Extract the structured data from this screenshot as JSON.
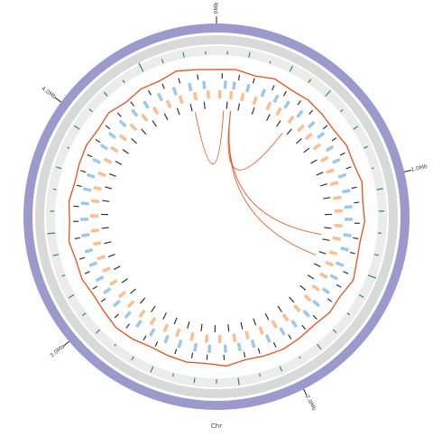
{
  "chart_data": {
    "type": "circos",
    "label": "Chr",
    "xlim": [
      0,
      4.7
    ],
    "xticks": [
      {
        "value": 0,
        "label": "0Mb"
      },
      {
        "value": 1,
        "label": "1.0Mb"
      },
      {
        "value": 2,
        "label": "2.0Mb"
      },
      {
        "value": 3,
        "label": "3.0Mb"
      },
      {
        "value": 4,
        "label": "4.0Mb"
      }
    ],
    "ideogram_color": "#9c99cc",
    "bins": [
      0,
      0.1,
      0.2,
      0.3,
      0.4,
      0.5,
      0.6,
      0.7,
      0.8,
      0.9,
      1,
      1.1,
      1.2,
      1.3,
      1.4,
      1.5,
      1.6,
      1.7,
      1.8,
      1.9,
      2,
      2.1,
      2.2,
      2.3,
      2.4,
      2.5,
      2.6,
      2.7,
      2.8,
      2.9,
      3,
      3.1,
      3.2,
      3.3,
      3.4,
      3.5,
      3.6,
      3.7,
      3.8,
      3.9,
      4,
      4.1,
      4.2,
      4.3,
      4.4,
      4.5,
      4.6,
      4.7
    ],
    "histogram": {
      "color": "#2e8b57",
      "ylim": [
        0,
        10
      ],
      "values": [
        3,
        5,
        2,
        6,
        4,
        7,
        3,
        5,
        4,
        2,
        6,
        5,
        3,
        4,
        8,
        5,
        3,
        4,
        6,
        2,
        5,
        3,
        7,
        4,
        5,
        3,
        6,
        4,
        2,
        5,
        4,
        6,
        3,
        5,
        7,
        4,
        3,
        5,
        2,
        6,
        4,
        5,
        3,
        9,
        4,
        5,
        3
      ]
    },
    "line": {
      "color": "#e8501c",
      "ylim": [
        0,
        10
      ],
      "values": [
        5,
        6,
        4,
        7,
        5,
        6,
        5,
        4,
        6,
        5,
        7,
        5,
        6,
        4,
        5,
        8,
        5,
        6,
        4,
        5,
        6,
        5,
        4,
        7,
        5,
        6,
        5,
        4,
        6,
        7,
        5,
        4,
        6,
        5,
        7,
        5,
        6,
        4,
        5,
        6,
        5,
        7,
        4,
        6,
        5,
        8,
        6
      ]
    },
    "gene_tracks": [
      {
        "color": "#333333",
        "positions": [
          0.03,
          0.12,
          0.2,
          0.31,
          0.38,
          0.47,
          0.55,
          0.66,
          0.74,
          0.83,
          0.91,
          1.02,
          1.1,
          1.21,
          1.29,
          1.37,
          1.48,
          1.56,
          1.65,
          1.77,
          1.85,
          1.94,
          2.03,
          2.12,
          2.2,
          2.31,
          2.4,
          2.48,
          2.57,
          2.68,
          2.75,
          2.86,
          2.94,
          3.05,
          3.13,
          3.22,
          3.3,
          3.41,
          3.5,
          3.58,
          3.69,
          3.77,
          3.86,
          3.95,
          4.04,
          4.13,
          4.22,
          4.33,
          4.41,
          4.5,
          4.6
        ]
      },
      {
        "color": "#9ecae1",
        "positions": [
          0.05,
          0.1,
          0.18,
          0.27,
          0.35,
          0.42,
          0.51,
          0.6,
          0.68,
          0.77,
          0.85,
          0.94,
          1.03,
          1.12,
          1.19,
          1.28,
          1.36,
          1.45,
          1.53,
          1.62,
          1.71,
          1.79,
          1.88,
          1.96,
          2.05,
          2.14,
          2.22,
          2.3,
          2.39,
          2.47,
          2.56,
          2.64,
          2.73,
          2.82,
          2.9,
          2.99,
          3.08,
          3.16,
          3.25,
          3.33,
          3.42,
          3.51,
          3.6,
          3.68,
          3.76,
          3.85,
          3.94,
          4.02,
          4.11,
          4.2,
          4.28,
          4.37,
          4.46,
          4.55,
          4.63
        ]
      },
      {
        "color": "#fdbe8f",
        "positions": [
          0.02,
          0.09,
          0.16,
          0.24,
          0.33,
          0.4,
          0.49,
          0.57,
          0.64,
          0.72,
          0.81,
          0.89,
          0.97,
          1.06,
          1.14,
          1.23,
          1.31,
          1.4,
          1.47,
          1.55,
          1.64,
          1.72,
          1.81,
          1.9,
          1.98,
          2.07,
          2.16,
          2.24,
          2.33,
          2.41,
          2.5,
          2.59,
          2.67,
          2.76,
          2.84,
          2.93,
          3.01,
          3.1,
          3.19,
          3.27,
          3.36,
          3.44,
          3.53,
          3.62,
          3.7,
          3.79,
          3.88,
          3.96,
          4.05,
          4.14,
          4.23,
          4.31,
          4.4,
          4.48,
          4.57,
          4.65
        ]
      },
      {
        "color": "#333333",
        "positions": [
          0.07,
          0.15,
          0.25,
          0.36,
          0.44,
          0.53,
          0.62,
          0.7,
          0.79,
          0.88,
          0.96,
          1.05,
          1.16,
          1.25,
          1.33,
          1.42,
          1.51,
          1.6,
          1.69,
          1.8,
          1.9,
          2,
          2.09,
          2.18,
          2.27,
          2.36,
          2.45,
          2.54,
          2.63,
          2.71,
          2.8,
          2.89,
          2.98,
          3.07,
          3.17,
          3.26,
          3.35,
          3.45,
          3.54,
          3.63,
          3.72,
          3.81,
          3.9,
          3.99,
          4.08,
          4.17,
          4.26,
          4.35,
          4.44,
          4.53,
          4.62
        ]
      }
    ],
    "links": {
      "color": "#e8501c",
      "pairs": [
        [
          0.05,
          4.55
        ],
        [
          0.1,
          0.5
        ],
        [
          0.1,
          1.3
        ],
        [
          0.1,
          1.45
        ]
      ]
    }
  }
}
